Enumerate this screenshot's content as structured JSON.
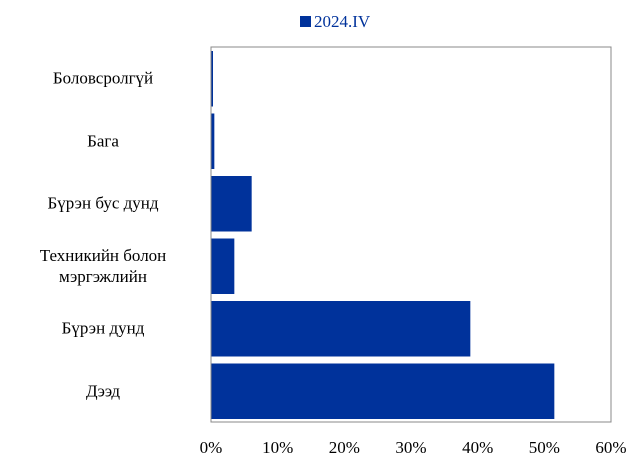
{
  "chart_data": {
    "type": "barh",
    "categories": [
      "Боловсролгүй",
      "Бага",
      "Бүрэн бус дунд",
      "Техникийн болон мэргэжлийн",
      "Бүрэн дунд",
      "Дээд"
    ],
    "series": [
      {
        "name": "2024.IV",
        "color": "#00329b",
        "values": [
          0.3,
          0.5,
          6.1,
          3.5,
          38.9,
          51.5
        ]
      }
    ],
    "xlim": [
      0,
      60
    ],
    "xticks": [
      {
        "value": 0,
        "label": "0%"
      },
      {
        "value": 10,
        "label": "10%"
      },
      {
        "value": 20,
        "label": "20%"
      },
      {
        "value": 30,
        "label": "30%"
      },
      {
        "value": 40,
        "label": "40%"
      },
      {
        "value": 50,
        "label": "50%"
      },
      {
        "value": 60,
        "label": "60%"
      }
    ],
    "legend": "top"
  }
}
